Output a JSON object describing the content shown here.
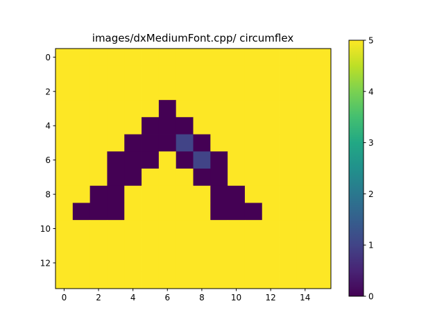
{
  "chart_data": {
    "type": "heatmap",
    "title": "images/dxMediumFont.cpp/ circumflex",
    "xlabel": "",
    "ylabel": "",
    "xlim": [
      -0.5,
      15.5
    ],
    "ylim": [
      13.5,
      -0.5
    ],
    "x_ticks": [
      "0",
      "2",
      "4",
      "6",
      "8",
      "10",
      "12",
      "14"
    ],
    "y_ticks": [
      "0",
      "2",
      "4",
      "6",
      "8",
      "10",
      "12"
    ],
    "colorbar": {
      "min": 0,
      "max": 5,
      "ticks": [
        "0",
        "1",
        "2",
        "3",
        "4",
        "5"
      ],
      "colormap": "viridis"
    },
    "grid": false,
    "values": [
      [
        5,
        5,
        5,
        5,
        5,
        5,
        5,
        5,
        5,
        5,
        5,
        5,
        5,
        5,
        5,
        5
      ],
      [
        5,
        5,
        5,
        5,
        5,
        5,
        5,
        5,
        5,
        5,
        5,
        5,
        5,
        5,
        5,
        5
      ],
      [
        5,
        5,
        5,
        5,
        5,
        5,
        5,
        5,
        5,
        5,
        5,
        5,
        5,
        5,
        5,
        5
      ],
      [
        5,
        5,
        5,
        5,
        5,
        5,
        0,
        5,
        5,
        5,
        5,
        5,
        5,
        5,
        5,
        5
      ],
      [
        5,
        5,
        5,
        5,
        5,
        0,
        0,
        0,
        5,
        5,
        5,
        5,
        5,
        5,
        5,
        5
      ],
      [
        5,
        5,
        5,
        5,
        0,
        0,
        0,
        1,
        0,
        5,
        5,
        5,
        5,
        5,
        5,
        5
      ],
      [
        5,
        5,
        5,
        0,
        0,
        0,
        5,
        0,
        1,
        0,
        5,
        5,
        5,
        5,
        5,
        5
      ],
      [
        5,
        5,
        5,
        0,
        0,
        5,
        5,
        5,
        0,
        0,
        5,
        5,
        5,
        5,
        5,
        5
      ],
      [
        5,
        5,
        0,
        0,
        5,
        5,
        5,
        5,
        5,
        0,
        0,
        5,
        5,
        5,
        5,
        5
      ],
      [
        5,
        0,
        0,
        0,
        5,
        5,
        5,
        5,
        5,
        0,
        0,
        0,
        5,
        5,
        5,
        5
      ],
      [
        5,
        5,
        5,
        5,
        5,
        5,
        5,
        5,
        5,
        5,
        5,
        5,
        5,
        5,
        5,
        5
      ],
      [
        5,
        5,
        5,
        5,
        5,
        5,
        5,
        5,
        5,
        5,
        5,
        5,
        5,
        5,
        5,
        5
      ],
      [
        5,
        5,
        5,
        5,
        5,
        5,
        5,
        5,
        5,
        5,
        5,
        5,
        5,
        5,
        5,
        5
      ],
      [
        5,
        5,
        5,
        5,
        5,
        5,
        5,
        5,
        5,
        5,
        5,
        5,
        5,
        5,
        5,
        5
      ]
    ]
  }
}
